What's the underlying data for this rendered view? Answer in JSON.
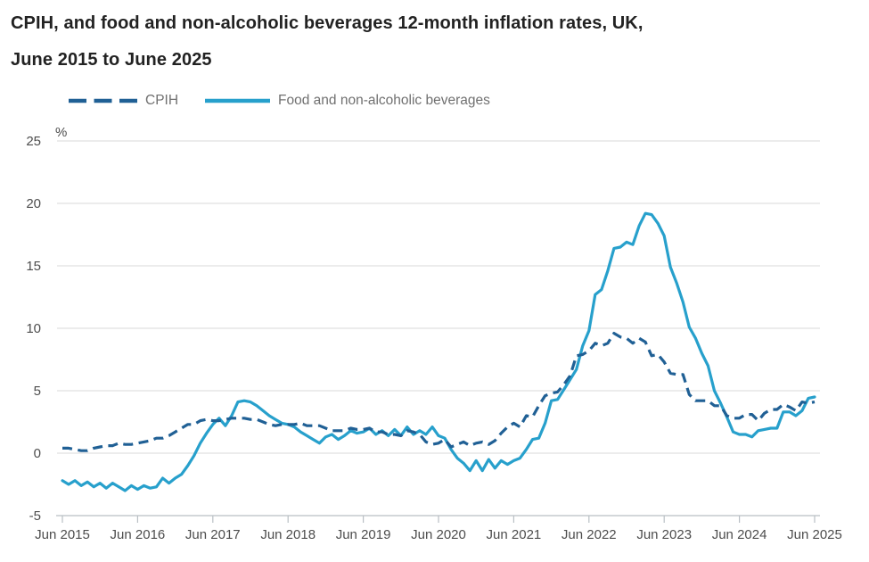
{
  "title": {
    "line1": "CPIH, and food and non-alcoholic beverages 12-month inflation rates, UK,",
    "line2": "June 2015 to June 2025"
  },
  "legend": {
    "items": [
      {
        "label": "CPIH",
        "color": "#206095",
        "style": "dashed"
      },
      {
        "label": "Food and non-alcoholic beverages",
        "color": "#27A0CC",
        "style": "solid"
      }
    ]
  },
  "chart_data": {
    "type": "line",
    "title": "CPIH, and food and non-alcoholic beverages 12-month inflation rates, UK, June 2015 to June 2025",
    "unit_label": "%",
    "ylabel": "%",
    "xlabel": "",
    "ylim": [
      -5,
      25
    ],
    "y_ticks": [
      25,
      20,
      15,
      10,
      5,
      0,
      -5
    ],
    "x_tick_labels": [
      "Jun 2015",
      "Jun 2016",
      "Jun 2017",
      "Jun 2018",
      "Jun 2019",
      "Jun 2020",
      "Jun 2021",
      "Jun 2022",
      "Jun 2023",
      "Jun 2024",
      "Jun 2025"
    ],
    "x_start": "Jun 2015",
    "x_end": "Jun 2025",
    "frequency": "monthly",
    "grid": true,
    "legend_position": "top",
    "axis_color": "#b9bfc4",
    "gridline_color": "#e1e1e1",
    "tick_label_color": "#4d4d4d",
    "series": [
      {
        "name": "CPIH",
        "color": "#206095",
        "dashed": true,
        "values": [
          0.4,
          0.4,
          0.3,
          0.2,
          0.2,
          0.4,
          0.5,
          0.6,
          0.6,
          0.8,
          0.7,
          0.7,
          0.8,
          0.9,
          1.0,
          1.2,
          1.2,
          1.4,
          1.7,
          2.0,
          2.3,
          2.3,
          2.6,
          2.7,
          2.6,
          2.6,
          2.7,
          2.8,
          2.8,
          2.8,
          2.7,
          2.7,
          2.5,
          2.3,
          2.2,
          2.3,
          2.3,
          2.3,
          2.4,
          2.2,
          2.2,
          2.2,
          2.0,
          1.8,
          1.8,
          1.8,
          2.0,
          1.9,
          1.9,
          2.0,
          1.7,
          1.7,
          1.5,
          1.5,
          1.4,
          1.8,
          1.7,
          1.5,
          0.9,
          0.7,
          0.8,
          1.1,
          0.5,
          0.7,
          0.9,
          0.6,
          0.8,
          0.9,
          0.7,
          1.0,
          1.6,
          2.1,
          2.4,
          2.1,
          3.0,
          2.9,
          3.8,
          4.6,
          4.8,
          4.9,
          5.5,
          6.2,
          7.8,
          7.9,
          8.2,
          8.8,
          8.6,
          8.8,
          9.6,
          9.3,
          9.2,
          8.8,
          9.2,
          8.9,
          7.8,
          7.9,
          7.3,
          6.4,
          6.3,
          6.3,
          4.7,
          4.2,
          4.2,
          4.2,
          3.8,
          3.8,
          3.0,
          2.8,
          2.8,
          3.1,
          3.1,
          2.6,
          3.2,
          3.5,
          3.5,
          3.9,
          3.7,
          3.4,
          4.1,
          4.0,
          4.1
        ]
      },
      {
        "name": "Food and non-alcoholic beverages",
        "color": "#27A0CC",
        "dashed": false,
        "values": [
          -2.2,
          -2.5,
          -2.2,
          -2.6,
          -2.3,
          -2.7,
          -2.4,
          -2.8,
          -2.4,
          -2.7,
          -3.0,
          -2.6,
          -2.9,
          -2.6,
          -2.8,
          -2.7,
          -2.0,
          -2.4,
          -2.0,
          -1.7,
          -1.0,
          -0.2,
          0.8,
          1.6,
          2.3,
          2.8,
          2.2,
          3.0,
          4.1,
          4.2,
          4.1,
          3.8,
          3.4,
          3.0,
          2.7,
          2.4,
          2.3,
          2.1,
          1.7,
          1.4,
          1.1,
          0.8,
          1.3,
          1.5,
          1.1,
          1.4,
          1.8,
          1.6,
          1.7,
          2.0,
          1.5,
          1.8,
          1.4,
          1.9,
          1.4,
          2.1,
          1.5,
          1.8,
          1.5,
          2.1,
          1.4,
          1.2,
          0.3,
          -0.4,
          -0.8,
          -1.4,
          -0.6,
          -1.4,
          -0.5,
          -1.2,
          -0.6,
          -0.9,
          -0.6,
          -0.4,
          0.3,
          1.1,
          1.2,
          2.4,
          4.2,
          4.3,
          5.1,
          5.9,
          6.7,
          8.6,
          9.8,
          12.7,
          13.1,
          14.6,
          16.4,
          16.5,
          16.9,
          16.7,
          18.2,
          19.2,
          19.1,
          18.4,
          17.4,
          14.9,
          13.6,
          12.1,
          10.1,
          9.2,
          8.0,
          7.0,
          5.0,
          4.0,
          2.9,
          1.7,
          1.5,
          1.5,
          1.3,
          1.8,
          1.9,
          2.0,
          2.0,
          3.3,
          3.3,
          3.0,
          3.4,
          4.4,
          4.5
        ]
      }
    ]
  }
}
